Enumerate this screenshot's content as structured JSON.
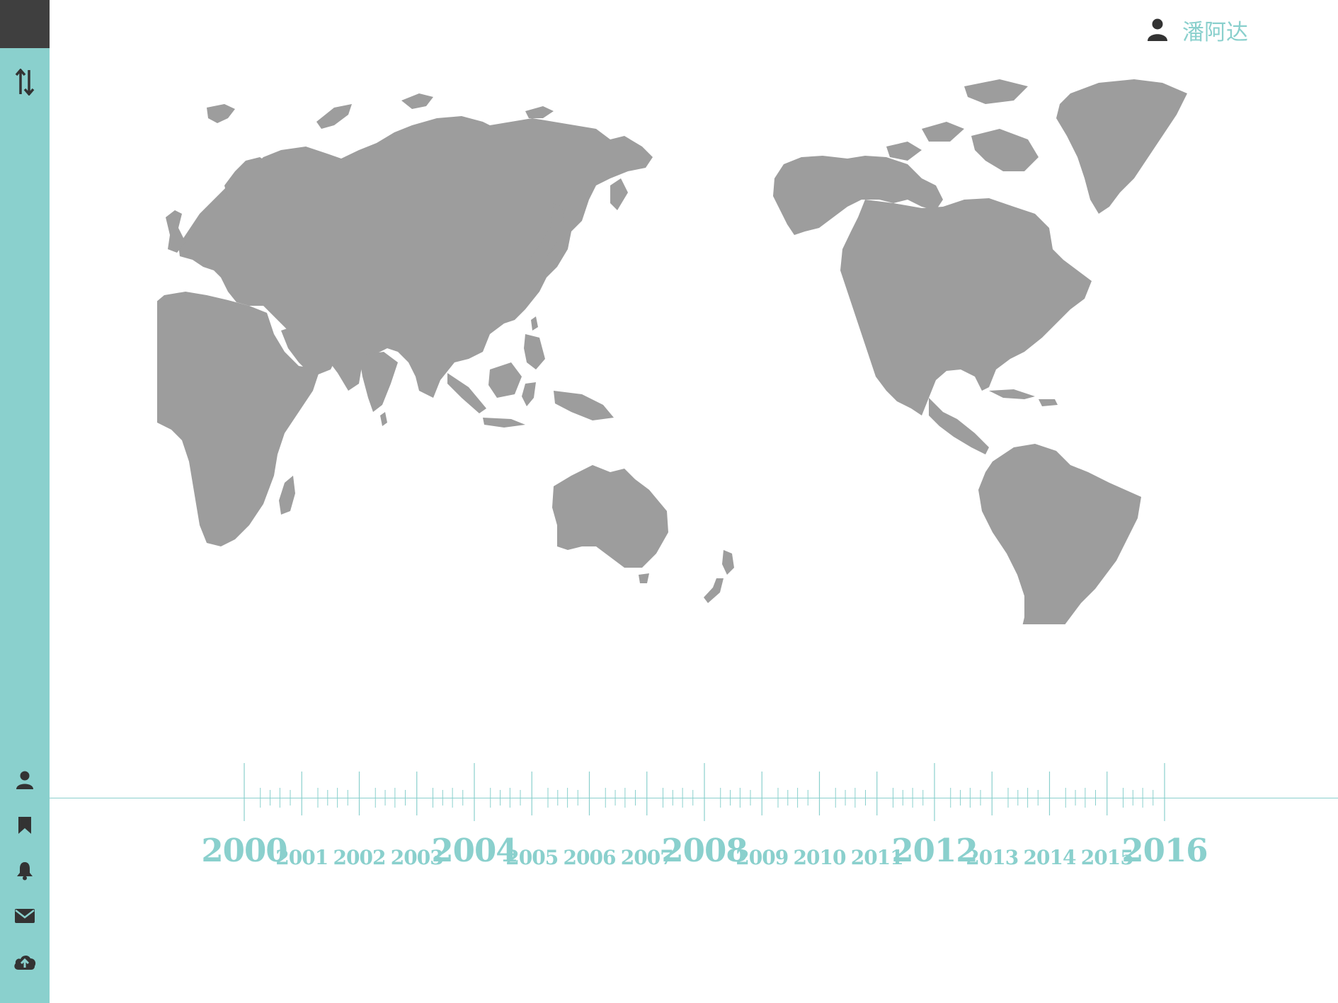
{
  "user": {
    "name": "潘阿达",
    "icon": "user-icon"
  },
  "sidebar": {
    "top_icon": "sort-icon",
    "items": [
      {
        "icon": "user-icon",
        "name": "profile"
      },
      {
        "icon": "bookmark-icon",
        "name": "bookmarks"
      },
      {
        "icon": "bell-icon",
        "name": "notifications"
      },
      {
        "icon": "envelope-icon",
        "name": "messages"
      },
      {
        "icon": "cloud-upload-icon",
        "name": "upload"
      }
    ]
  },
  "map": {
    "type": "world-map",
    "land_color": "#9d9d9d"
  },
  "timeline": {
    "years": [
      {
        "label": "2000",
        "major": true
      },
      {
        "label": "2001",
        "major": false
      },
      {
        "label": "2002",
        "major": false
      },
      {
        "label": "2003",
        "major": false
      },
      {
        "label": "2004",
        "major": true
      },
      {
        "label": "2005",
        "major": false
      },
      {
        "label": "2006",
        "major": false
      },
      {
        "label": "2007",
        "major": false
      },
      {
        "label": "2008",
        "major": true
      },
      {
        "label": "2009",
        "major": false
      },
      {
        "label": "2010",
        "major": false
      },
      {
        "label": "2011",
        "major": false
      },
      {
        "label": "2012",
        "major": true
      },
      {
        "label": "2013",
        "major": false
      },
      {
        "label": "2014",
        "major": false
      },
      {
        "label": "2015",
        "major": false
      },
      {
        "label": "2016",
        "major": true
      }
    ]
  },
  "colors": {
    "accent": "#8ad0cd",
    "sidebar_corner": "#3f3f3f",
    "icon_dark": "#333333",
    "land": "#9d9d9d"
  }
}
